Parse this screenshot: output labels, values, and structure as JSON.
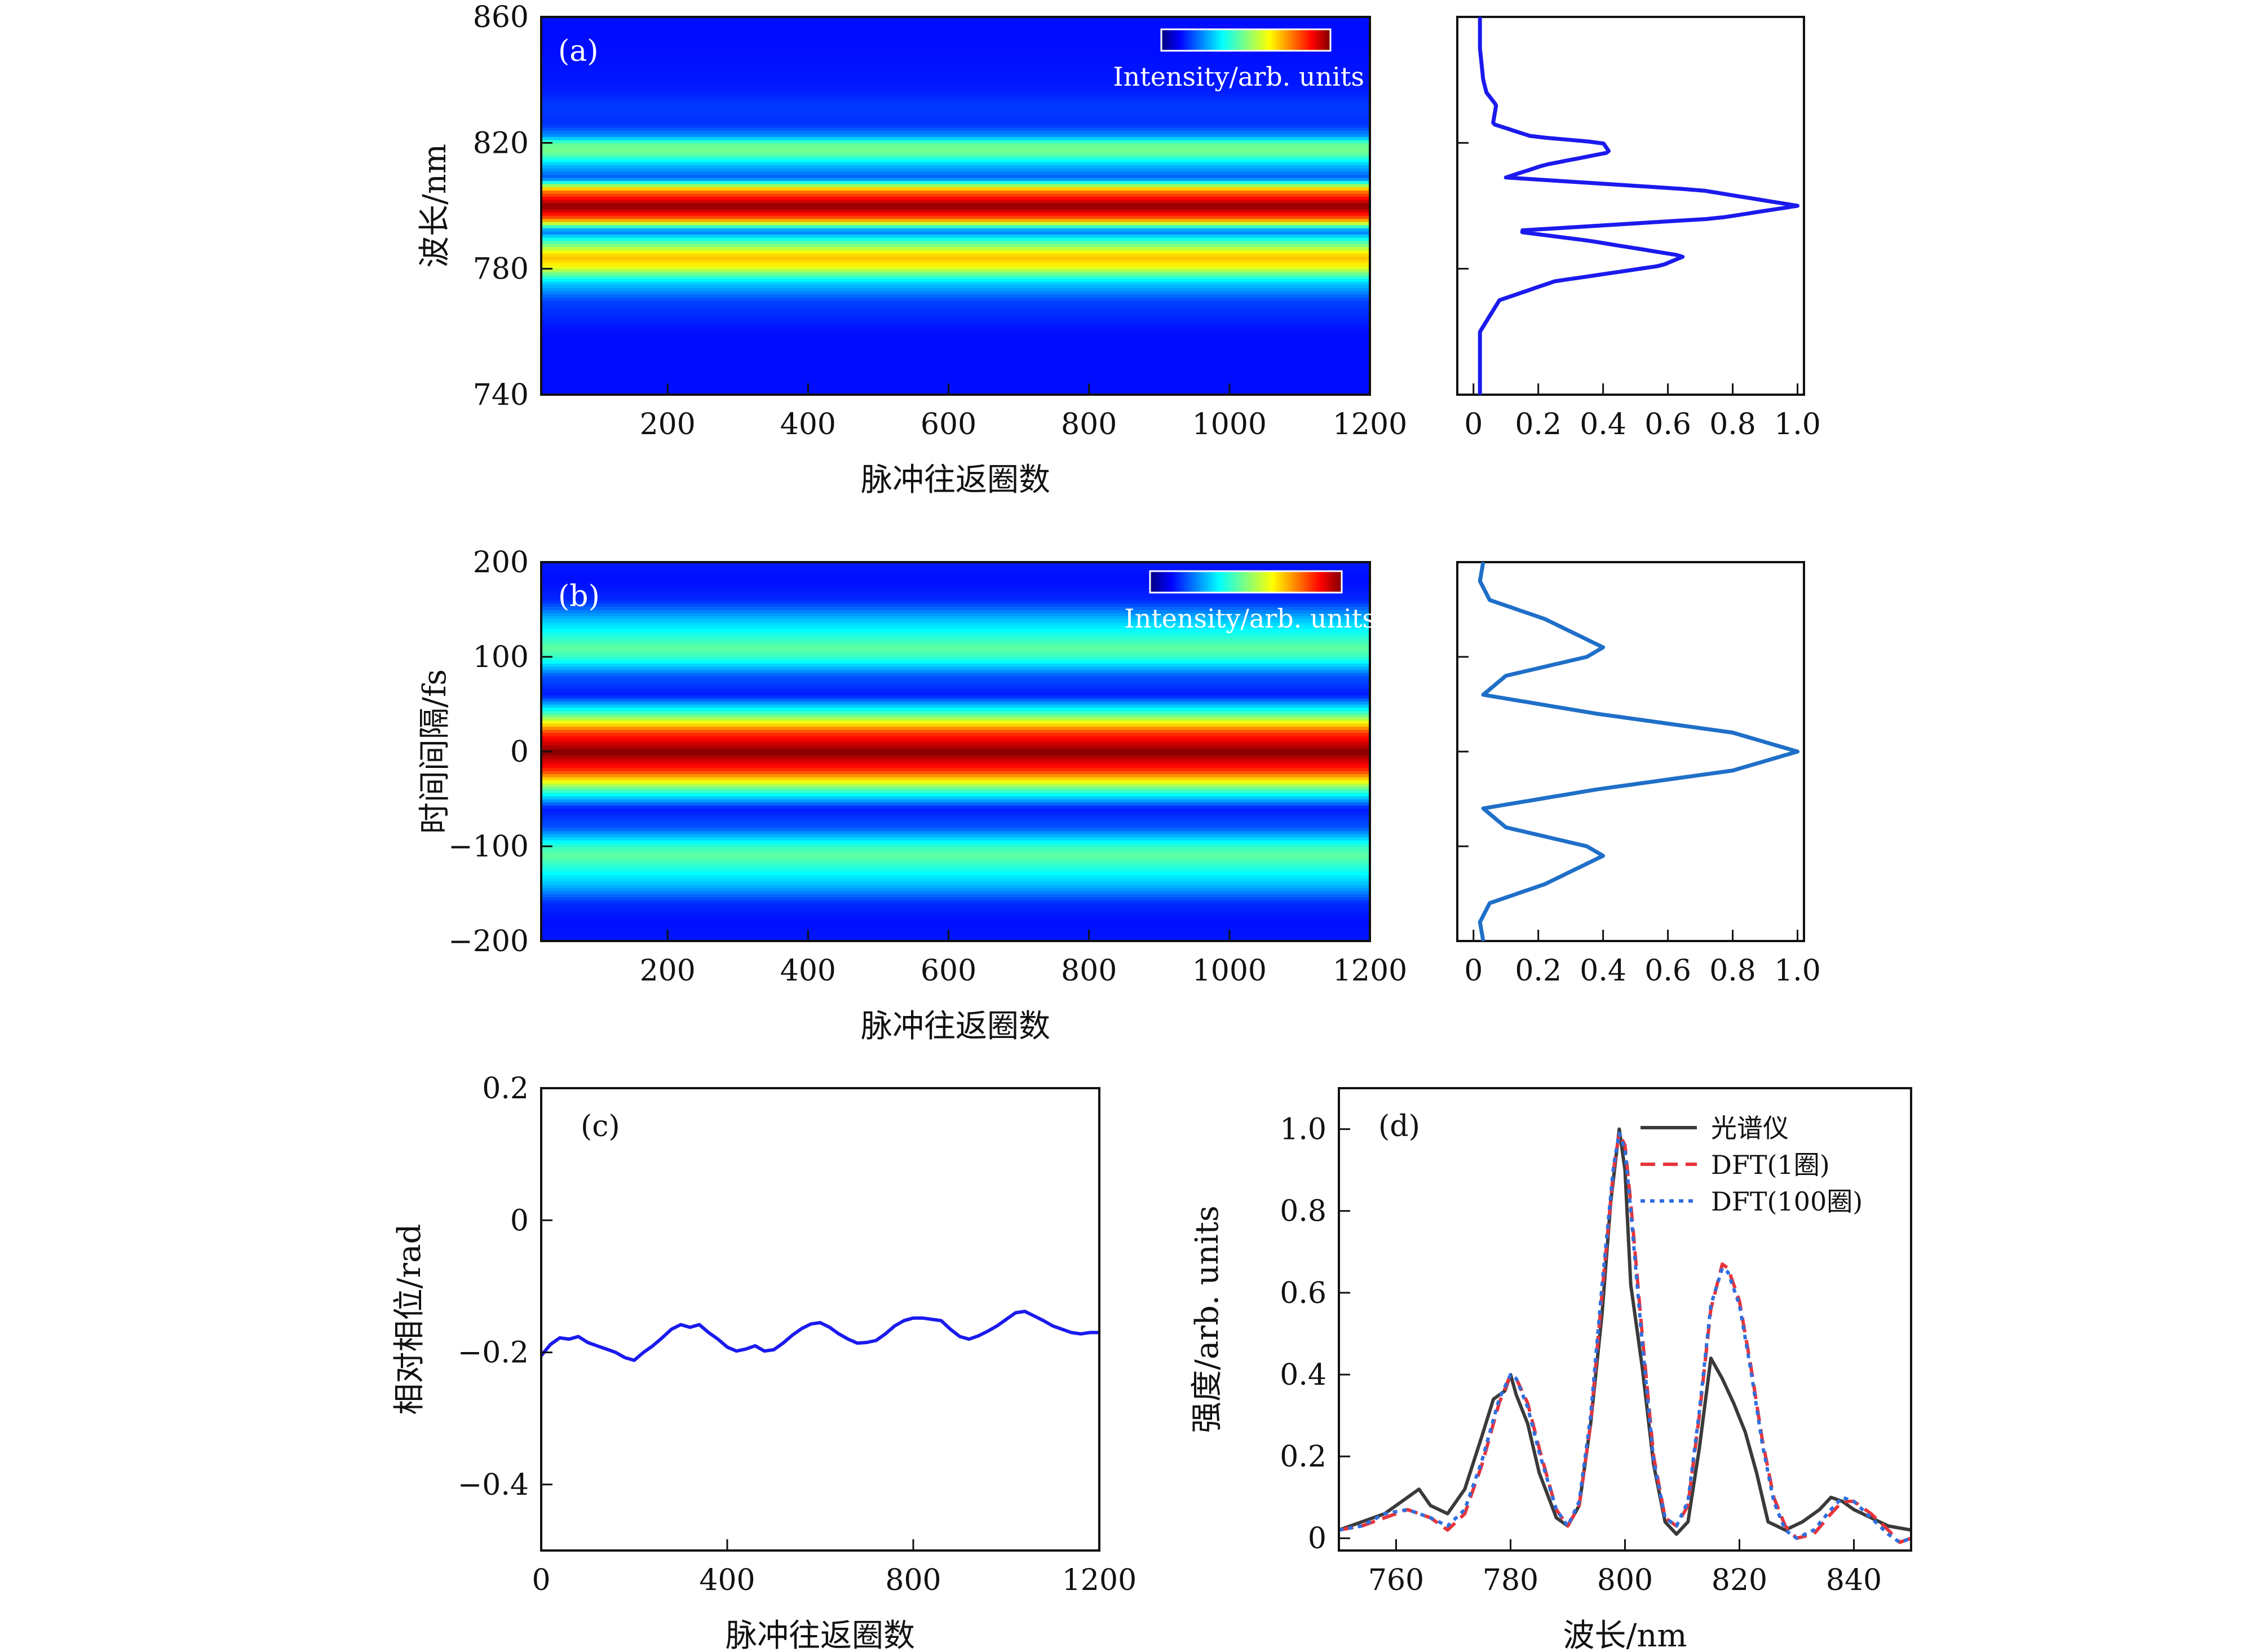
{
  "chart_data": [
    {
      "id": "a",
      "type": "heatmap",
      "panel_label": "(a)",
      "xlabel": "脉冲往返圈数",
      "ylabel": "波长/nm",
      "xlim": [
        20,
        1200
      ],
      "ylim": [
        740,
        860
      ],
      "xticks": [
        200,
        400,
        600,
        800,
        1000,
        1200
      ],
      "xtick_labels": [
        "200",
        "400",
        "600",
        "800",
        "1000",
        "1200"
      ],
      "yticks": [
        740,
        780,
        820,
        860
      ],
      "ytick_labels": [
        "740",
        "780",
        "820",
        "860"
      ],
      "colorbar_label": "Intensity/arb. units",
      "colormap": "jet",
      "profile": {
        "y": [
          740,
          760,
          770,
          776,
          781,
          784,
          789,
          792,
          796,
          800,
          805,
          809,
          813,
          817,
          820,
          822,
          826,
          832,
          836,
          840,
          850,
          860
        ],
        "intensity": [
          0.02,
          0.02,
          0.08,
          0.25,
          0.58,
          0.65,
          0.35,
          0.12,
          0.75,
          1.0,
          0.7,
          0.1,
          0.22,
          0.42,
          0.4,
          0.18,
          0.06,
          0.07,
          0.04,
          0.03,
          0.02,
          0.02
        ]
      },
      "side_plot": {
        "xlim": [
          -0.05,
          1.02
        ],
        "xticks": [
          0,
          0.2,
          0.4,
          0.6,
          0.8,
          1.0
        ],
        "xtick_labels": [
          "0",
          "0.2",
          "0.4",
          "0.6",
          "0.8",
          "1.0"
        ],
        "color": "#1a1aee"
      }
    },
    {
      "id": "b",
      "type": "heatmap",
      "panel_label": "(b)",
      "xlabel": "脉冲往返圈数",
      "ylabel": "时间间隔/fs",
      "xlim": [
        20,
        1200
      ],
      "ylim": [
        -200,
        200
      ],
      "xticks": [
        200,
        400,
        600,
        800,
        1000,
        1200
      ],
      "xtick_labels": [
        "200",
        "400",
        "600",
        "800",
        "1000",
        "1200"
      ],
      "yticks": [
        -200,
        -100,
        0,
        100,
        200
      ],
      "ytick_labels": [
        "−200",
        "−100",
        "0",
        "100",
        "200"
      ],
      "colorbar_label": "Intensity/arb. units",
      "colormap": "jet",
      "profile": {
        "y": [
          -200,
          -180,
          -160,
          -140,
          -110,
          -100,
          -80,
          -60,
          -40,
          -20,
          0,
          20,
          40,
          60,
          80,
          100,
          110,
          140,
          160,
          180,
          200
        ],
        "intensity": [
          0.03,
          0.02,
          0.05,
          0.22,
          0.4,
          0.35,
          0.1,
          0.03,
          0.38,
          0.8,
          1.0,
          0.8,
          0.38,
          0.03,
          0.1,
          0.35,
          0.4,
          0.22,
          0.05,
          0.02,
          0.03
        ]
      },
      "side_plot": {
        "xlim": [
          -0.05,
          1.02
        ],
        "xticks": [
          0,
          0.2,
          0.4,
          0.6,
          0.8,
          1.0
        ],
        "xtick_labels": [
          "0",
          "0.2",
          "0.4",
          "0.6",
          "0.8",
          "1.0"
        ],
        "color": "#1f6fc8"
      }
    },
    {
      "id": "c",
      "type": "line",
      "panel_label": "(c)",
      "xlabel": "脉冲往返圈数",
      "ylabel": "相对相位/rad",
      "xlim": [
        0,
        1200
      ],
      "ylim": [
        -0.5,
        0.2
      ],
      "xticks": [
        0,
        400,
        800,
        1200
      ],
      "xtick_labels": [
        "0",
        "400",
        "800",
        "1200"
      ],
      "yticks": [
        -0.4,
        -0.2,
        0,
        0.2
      ],
      "ytick_labels": [
        "−0.4",
        "−0.2",
        "0",
        "0.2"
      ],
      "series": [
        {
          "name": "相对相位",
          "color": "#1a1aee",
          "x": [
            0,
            20,
            40,
            60,
            80,
            100,
            120,
            140,
            160,
            180,
            200,
            220,
            240,
            260,
            280,
            300,
            320,
            340,
            360,
            380,
            400,
            420,
            440,
            460,
            480,
            500,
            520,
            540,
            560,
            580,
            600,
            620,
            640,
            660,
            680,
            700,
            720,
            740,
            760,
            780,
            800,
            820,
            840,
            860,
            880,
            900,
            920,
            940,
            960,
            980,
            1000,
            1020,
            1040,
            1060,
            1080,
            1100,
            1120,
            1140,
            1160,
            1180,
            1200
          ],
          "y": [
            -0.205,
            -0.188,
            -0.178,
            -0.18,
            -0.176,
            -0.185,
            -0.19,
            -0.195,
            -0.2,
            -0.208,
            -0.212,
            -0.2,
            -0.19,
            -0.178,
            -0.165,
            -0.158,
            -0.162,
            -0.158,
            -0.17,
            -0.18,
            -0.192,
            -0.198,
            -0.195,
            -0.19,
            -0.198,
            -0.196,
            -0.186,
            -0.174,
            -0.164,
            -0.157,
            -0.155,
            -0.162,
            -0.172,
            -0.18,
            -0.186,
            -0.185,
            -0.182,
            -0.172,
            -0.16,
            -0.152,
            -0.148,
            -0.148,
            -0.15,
            -0.152,
            -0.165,
            -0.176,
            -0.18,
            -0.175,
            -0.168,
            -0.16,
            -0.15,
            -0.14,
            -0.138,
            -0.145,
            -0.152,
            -0.16,
            -0.165,
            -0.17,
            -0.172,
            -0.17,
            -0.17
          ]
        }
      ]
    },
    {
      "id": "d",
      "type": "line",
      "panel_label": "(d)",
      "xlabel": "波长/nm",
      "ylabel": "强度/arb. units",
      "xlim": [
        750,
        850
      ],
      "ylim": [
        -0.03,
        1.1
      ],
      "xticks": [
        760,
        780,
        800,
        820,
        840
      ],
      "xtick_labels": [
        "760",
        "780",
        "800",
        "820",
        "840"
      ],
      "yticks": [
        0,
        0.2,
        0.4,
        0.6,
        0.8,
        1.0
      ],
      "ytick_labels": [
        "0",
        "0.2",
        "0.4",
        "0.6",
        "0.8",
        "1.0"
      ],
      "legend_position": "top-right",
      "series": [
        {
          "name": "光谱仪",
          "color": "#3a3a3a",
          "style": "solid",
          "x": [
            750,
            754,
            758,
            761,
            764,
            766,
            769,
            772,
            775,
            777,
            779,
            780,
            781,
            783,
            785,
            788,
            790,
            792,
            794,
            796,
            797.5,
            799,
            800,
            801,
            803,
            805,
            807,
            809,
            811,
            813,
            815,
            817,
            819,
            821,
            823,
            825,
            828,
            831,
            834,
            836,
            838,
            840,
            843,
            846,
            850
          ],
          "y": [
            0.02,
            0.04,
            0.06,
            0.09,
            0.12,
            0.08,
            0.06,
            0.12,
            0.25,
            0.34,
            0.36,
            0.4,
            0.35,
            0.28,
            0.16,
            0.05,
            0.03,
            0.08,
            0.28,
            0.55,
            0.82,
            1.0,
            0.9,
            0.62,
            0.42,
            0.18,
            0.04,
            0.01,
            0.04,
            0.22,
            0.44,
            0.39,
            0.33,
            0.26,
            0.16,
            0.04,
            0.02,
            0.04,
            0.07,
            0.1,
            0.09,
            0.07,
            0.05,
            0.03,
            0.02
          ]
        },
        {
          "name": "DFT(1圈)",
          "color": "#e8343a",
          "style": "dashed",
          "x": [
            750,
            754,
            758,
            762,
            766,
            769,
            772,
            775,
            778,
            780,
            781,
            783,
            785,
            788,
            790,
            792,
            794,
            796,
            798,
            799,
            800,
            801,
            803,
            805,
            807,
            809,
            811,
            813,
            815,
            817,
            818,
            820,
            822,
            824,
            826,
            828,
            830,
            833,
            836,
            838,
            840,
            843,
            846,
            848,
            850
          ],
          "y": [
            0.02,
            0.03,
            0.05,
            0.07,
            0.05,
            0.02,
            0.06,
            0.18,
            0.33,
            0.4,
            0.39,
            0.33,
            0.22,
            0.07,
            0.03,
            0.08,
            0.28,
            0.6,
            0.9,
            0.99,
            0.96,
            0.82,
            0.5,
            0.2,
            0.05,
            0.03,
            0.08,
            0.3,
            0.56,
            0.67,
            0.66,
            0.58,
            0.42,
            0.24,
            0.1,
            0.03,
            0.0,
            0.01,
            0.06,
            0.09,
            0.09,
            0.06,
            0.02,
            -0.01,
            0.0
          ]
        },
        {
          "name": "DFT(100圈)",
          "color": "#2f6fe0",
          "style": "dotted",
          "x": [
            750,
            754,
            758,
            762,
            766,
            769,
            772,
            775,
            778,
            780,
            781,
            783,
            785,
            788,
            790,
            792,
            794,
            796,
            798,
            799,
            800,
            801,
            803,
            805,
            807,
            809,
            811,
            813,
            815,
            817,
            818,
            820,
            822,
            824,
            826,
            828,
            830,
            833,
            836,
            838,
            840,
            843,
            846,
            848,
            850
          ],
          "y": [
            0.02,
            0.03,
            0.06,
            0.07,
            0.05,
            0.03,
            0.07,
            0.19,
            0.34,
            0.4,
            0.39,
            0.32,
            0.21,
            0.07,
            0.03,
            0.09,
            0.3,
            0.62,
            0.91,
            0.99,
            0.95,
            0.8,
            0.48,
            0.19,
            0.05,
            0.03,
            0.09,
            0.31,
            0.57,
            0.66,
            0.65,
            0.57,
            0.41,
            0.23,
            0.09,
            0.02,
            0.0,
            0.02,
            0.07,
            0.1,
            0.09,
            0.05,
            0.01,
            -0.01,
            0.0
          ]
        }
      ]
    }
  ]
}
